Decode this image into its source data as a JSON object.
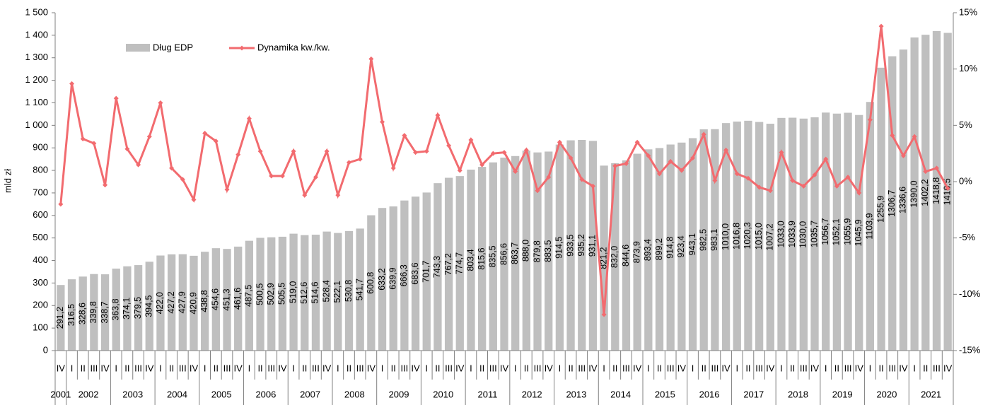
{
  "chart_data": {
    "type": "bar_line",
    "y_label": "mld zł",
    "categories": [
      "IV",
      "I",
      "II",
      "III",
      "IV",
      "I",
      "II",
      "III",
      "IV",
      "I",
      "II",
      "III",
      "IV",
      "I",
      "II",
      "III",
      "IV",
      "I",
      "II",
      "III",
      "IV",
      "I",
      "II",
      "III",
      "IV",
      "I",
      "II",
      "III",
      "IV",
      "I",
      "II",
      "III",
      "IV",
      "I",
      "II",
      "III",
      "IV",
      "I",
      "II",
      "III",
      "IV",
      "I",
      "II",
      "III",
      "IV",
      "I",
      "II",
      "III",
      "IV",
      "I",
      "II",
      "III",
      "IV",
      "I",
      "II",
      "III",
      "IV",
      "I",
      "II",
      "III",
      "IV",
      "I",
      "II",
      "III",
      "IV",
      "I",
      "II",
      "III",
      "IV",
      "I",
      "II",
      "III",
      "IV",
      "I",
      "II",
      "III",
      "IV",
      "I",
      "II",
      "III",
      "IV"
    ],
    "years": [
      "2001",
      "2002",
      "2003",
      "2004",
      "2005",
      "2006",
      "2007",
      "2008",
      "2009",
      "2010",
      "2011",
      "2012",
      "2013",
      "2014",
      "2015",
      "2016",
      "2017",
      "2018",
      "2019",
      "2020",
      "2021"
    ],
    "series": [
      {
        "name": "Dług EDP",
        "color": "#bfbfbf",
        "values": [
          291.2,
          316.5,
          328.6,
          339.8,
          338.7,
          363.8,
          374.1,
          379.5,
          394.5,
          422.0,
          427.2,
          427.9,
          420.9,
          438.8,
          454.6,
          451.3,
          461.6,
          487.5,
          500.5,
          502.9,
          505.5,
          519.0,
          512.6,
          514.6,
          528.4,
          522.1,
          530.8,
          541.7,
          600.8,
          633.2,
          639.9,
          666.3,
          683.6,
          701.7,
          743.3,
          767.2,
          774.7,
          803.4,
          815.6,
          835.5,
          856.6,
          863.7,
          888.0,
          879.8,
          883.5,
          914.5,
          933.5,
          935.2,
          931.1,
          821.2,
          832.0,
          844.6,
          873.9,
          893.4,
          899.2,
          914.8,
          923.4,
          943.1,
          982.5,
          983.1,
          1010.0,
          1016.8,
          1020.3,
          1015.0,
          1007.2,
          1033.0,
          1033.9,
          1030.0,
          1035.7,
          1056.7,
          1052.1,
          1055.9,
          1045.9,
          1103.9,
          1255.9,
          1306.7,
          1336.6,
          1390.0,
          1402.2,
          1418.8,
          1410.5
        ],
        "value_labels": [
          "291,2",
          "316,5",
          "328,6",
          "339,8",
          "338,7",
          "363,8",
          "374,1",
          "379,5",
          "394,5",
          "422,0",
          "427,2",
          "427,9",
          "420,9",
          "438,8",
          "454,6",
          "451,3",
          "461,6",
          "487,5",
          "500,5",
          "502,9",
          "505,5",
          "519,0",
          "512,6",
          "514,6",
          "528,4",
          "522,1",
          "530,8",
          "541,7",
          "600,8",
          "633,2",
          "639,9",
          "666,3",
          "683,6",
          "701,7",
          "743,3",
          "767,2",
          "774,7",
          "803,4",
          "815,6",
          "835,5",
          "856,6",
          "863,7",
          "888,0",
          "879,8",
          "883,5",
          "914,5",
          "933,5",
          "935,2",
          "931,1",
          "821,2",
          "832,0",
          "844,6",
          "873,9",
          "893,4",
          "899,2",
          "914,8",
          "923,4",
          "943,1",
          "982,5",
          "983,1",
          "1010,0",
          "1016,8",
          "1020,3",
          "1015,0",
          "1007,2",
          "1033,0",
          "1033,9",
          "1030,0",
          "1035,7",
          "1056,7",
          "1052,1",
          "1055,9",
          "1045,9",
          "1103,9",
          "1255,9",
          "1306,7",
          "1336,6",
          "1390,0",
          "1402,2",
          "1418,8",
          "1410,5"
        ]
      },
      {
        "name": "Dynamika kw./kw.",
        "color": "#f26b6f",
        "axis": "y2",
        "values": [
          -2.0,
          8.7,
          3.8,
          3.4,
          -0.3,
          7.4,
          2.9,
          1.5,
          4.0,
          7.0,
          1.2,
          0.2,
          -1.6,
          4.3,
          3.6,
          -0.7,
          2.4,
          5.6,
          2.7,
          0.5,
          0.5,
          2.7,
          -1.2,
          0.4,
          2.7,
          -1.2,
          1.7,
          2.0,
          10.9,
          5.3,
          1.2,
          4.1,
          2.6,
          2.7,
          5.9,
          3.2,
          1.0,
          3.7,
          1.5,
          2.5,
          2.6,
          0.9,
          2.8,
          -0.8,
          0.4,
          3.5,
          2.1,
          0.2,
          -0.4,
          -11.8,
          1.4,
          1.6,
          3.5,
          2.3,
          0.7,
          1.8,
          1.0,
          2.1,
          4.2,
          0.1,
          2.8,
          0.7,
          0.3,
          -0.5,
          -0.8,
          2.6,
          0.1,
          -0.4,
          0.6,
          2.0,
          -0.4,
          0.4,
          -1.0,
          5.5,
          13.8,
          4.1,
          2.3,
          4.0,
          0.9,
          1.2,
          -0.6
        ]
      }
    ],
    "ylim": [
      0,
      1500
    ],
    "yticks": [
      0,
      100,
      200,
      300,
      400,
      500,
      600,
      700,
      800,
      900,
      {
        "value": 1000,
        "label": "1 000"
      },
      {
        "value": 1100,
        "label": "1 100"
      },
      {
        "value": 1200,
        "label": "1 200"
      },
      {
        "value": 1300,
        "label": "1 300"
      },
      {
        "value": 1400,
        "label": "1 400"
      },
      {
        "value": 1500,
        "label": "1 500"
      }
    ],
    "y2lim": [
      -15,
      15
    ],
    "y2ticks": [
      {
        "value": -15,
        "label": "-15%"
      },
      {
        "value": -10,
        "label": "-10%"
      },
      {
        "value": -5,
        "label": "-5%"
      },
      {
        "value": 0,
        "label": "0%"
      },
      {
        "value": 5,
        "label": "5%"
      },
      {
        "value": 10,
        "label": "10%"
      },
      {
        "value": 15,
        "label": "15%"
      }
    ]
  }
}
